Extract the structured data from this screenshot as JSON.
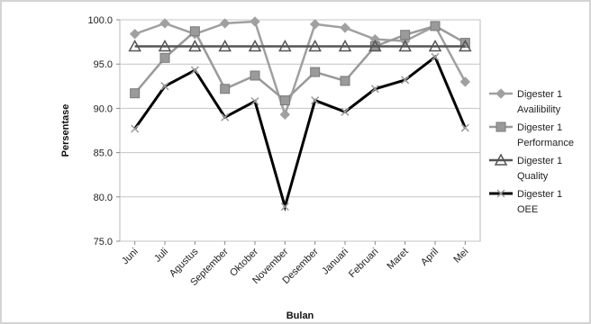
{
  "chart_data": {
    "type": "line",
    "xlabel": "Bulan",
    "ylabel": "Persentase",
    "ylim": [
      75.0,
      100.0
    ],
    "y_ticks": [
      "75.0",
      "80.0",
      "85.0",
      "90.0",
      "95.0",
      "100.0"
    ],
    "grid": "horizontal",
    "legend_position": "right",
    "categories": [
      "Juni",
      "Juli",
      "Agustus",
      "September",
      "Oktober",
      "November",
      "Desember",
      "Januari",
      "Februari",
      "Maret",
      "April",
      "Mei"
    ],
    "series": [
      {
        "name": "Digester 1 Availibility",
        "name_lines": [
          "Digester 1",
          "Availibility"
        ],
        "marker": "diamond",
        "color": "#a0a0a0",
        "values": [
          98.4,
          99.6,
          98.4,
          99.6,
          99.8,
          89.3,
          99.5,
          99.1,
          97.8,
          97.6,
          99.3,
          93.0
        ]
      },
      {
        "name": "Digester 1 Performance",
        "name_lines": [
          "Digester 1",
          "Performance"
        ],
        "marker": "square",
        "color": "#9a9a9a",
        "values": [
          91.7,
          95.7,
          98.7,
          92.2,
          93.7,
          90.9,
          94.1,
          93.1,
          97.0,
          98.3,
          99.3,
          97.4
        ]
      },
      {
        "name": "Digester 1 Quality",
        "name_lines": [
          "Digester 1",
          "Quality"
        ],
        "marker": "triangle",
        "color": "#555555",
        "values": [
          97.0,
          97.0,
          97.0,
          97.0,
          97.0,
          97.0,
          97.0,
          97.0,
          97.0,
          97.0,
          97.0,
          97.0
        ]
      },
      {
        "name": "Digester 1 OEE",
        "name_lines": [
          "Digester 1",
          "OEE"
        ],
        "marker": "x",
        "color": "#000000",
        "values": [
          87.7,
          92.5,
          94.3,
          89.0,
          90.8,
          78.9,
          90.9,
          89.6,
          92.2,
          93.2,
          95.8,
          87.8
        ]
      }
    ]
  }
}
